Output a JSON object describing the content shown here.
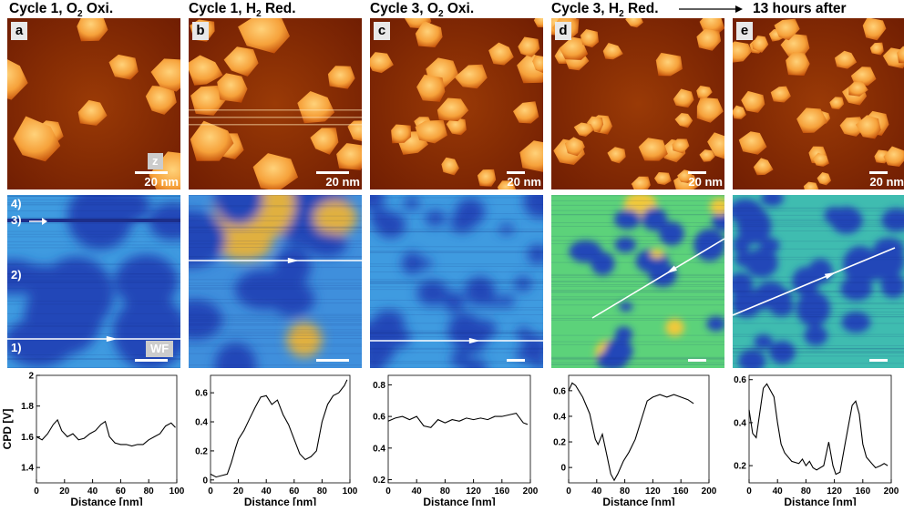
{
  "titles": {
    "a": "Cycle 1, O",
    "a_sub": "2",
    "a_tail": " Oxi.",
    "b": "Cycle 1, H",
    "b_sub": "2",
    "b_tail": " Red.",
    "c": "Cycle 3, O",
    "c_sub": "2",
    "c_tail": " Oxi.",
    "d": "Cycle 3, H",
    "d_sub": "2",
    "d_tail": " Red.",
    "e": "13 hours after"
  },
  "panel_letters": [
    "a",
    "b",
    "c",
    "d",
    "e"
  ],
  "scale_label": "20 nm",
  "topo_tag": "z",
  "kpfm_tag": "WF",
  "row_labels": [
    "4)",
    "3)",
    "2)",
    "1)"
  ],
  "colors": {
    "topo_dark": "#6b1a02",
    "topo_mid": "#c24d08",
    "topo_light": "#ffd27a",
    "kpfm_low": "#2146b8",
    "kpfm_mid": "#3fb8c8",
    "kpfm_high": "#f0c93a"
  },
  "chart_data": [
    {
      "type": "line",
      "panel": "a",
      "xlabel": "Distance [nm]",
      "ylabel": "CPD [V]",
      "xlim": [
        0,
        100
      ],
      "ylim": [
        1.3,
        2.0
      ],
      "xticks": [
        "0",
        "20",
        "40",
        "60",
        "80",
        "100"
      ],
      "yticks": [
        "1.4",
        "1.6",
        "1.8",
        "2"
      ],
      "x": [
        0,
        4,
        8,
        12,
        15,
        18,
        22,
        26,
        30,
        34,
        38,
        42,
        46,
        49,
        52,
        56,
        60,
        64,
        68,
        72,
        76,
        80,
        84,
        88,
        92,
        96,
        99
      ],
      "y": [
        1.6,
        1.58,
        1.62,
        1.68,
        1.71,
        1.64,
        1.6,
        1.62,
        1.58,
        1.59,
        1.62,
        1.64,
        1.68,
        1.7,
        1.6,
        1.56,
        1.55,
        1.55,
        1.54,
        1.55,
        1.55,
        1.58,
        1.6,
        1.62,
        1.67,
        1.69,
        1.66
      ]
    },
    {
      "type": "line",
      "panel": "b",
      "xlabel": "Distance [nm]",
      "xlim": [
        0,
        100
      ],
      "ylim": [
        -0.02,
        0.72
      ],
      "xticks": [
        "0",
        "20",
        "40",
        "60",
        "80",
        "100"
      ],
      "yticks": [
        "0",
        "0.2",
        "0.4",
        "0.6"
      ],
      "x": [
        0,
        4,
        8,
        12,
        15,
        18,
        20,
        24,
        28,
        32,
        36,
        40,
        44,
        48,
        52,
        56,
        60,
        64,
        68,
        72,
        76,
        80,
        84,
        88,
        92,
        96,
        98
      ],
      "y": [
        0.04,
        0.02,
        0.03,
        0.04,
        0.12,
        0.22,
        0.28,
        0.34,
        0.42,
        0.5,
        0.57,
        0.58,
        0.52,
        0.55,
        0.45,
        0.38,
        0.28,
        0.18,
        0.14,
        0.16,
        0.2,
        0.4,
        0.52,
        0.58,
        0.6,
        0.65,
        0.69
      ]
    },
    {
      "type": "line",
      "panel": "c",
      "xlabel": "Distance [nm]",
      "xlim": [
        0,
        200
      ],
      "ylim": [
        0.18,
        0.86
      ],
      "xticks": [
        "0",
        "40",
        "80",
        "120",
        "160",
        "200"
      ],
      "yticks": [
        "0.2",
        "0.4",
        "0.6",
        "0.8"
      ],
      "x": [
        0,
        10,
        20,
        30,
        40,
        50,
        60,
        70,
        80,
        90,
        100,
        110,
        120,
        130,
        140,
        150,
        160,
        170,
        180,
        190,
        196
      ],
      "y": [
        0.57,
        0.59,
        0.6,
        0.58,
        0.6,
        0.54,
        0.53,
        0.58,
        0.56,
        0.58,
        0.57,
        0.59,
        0.58,
        0.59,
        0.58,
        0.6,
        0.6,
        0.61,
        0.62,
        0.56,
        0.55
      ]
    },
    {
      "type": "line",
      "panel": "d",
      "xlabel": "Distance [nm]",
      "xlim": [
        0,
        200
      ],
      "ylim": [
        -0.12,
        0.72
      ],
      "xticks": [
        "0",
        "40",
        "80",
        "120",
        "160",
        "200"
      ],
      "yticks": [
        "0",
        "0.2",
        "0.4",
        "0.6"
      ],
      "x": [
        0,
        5,
        10,
        20,
        30,
        38,
        42,
        48,
        55,
        60,
        65,
        70,
        78,
        86,
        95,
        105,
        112,
        120,
        130,
        140,
        150,
        160,
        170,
        178
      ],
      "y": [
        0.6,
        0.66,
        0.64,
        0.55,
        0.42,
        0.22,
        0.18,
        0.26,
        0.08,
        -0.05,
        -0.1,
        -0.05,
        0.05,
        0.12,
        0.22,
        0.4,
        0.52,
        0.55,
        0.57,
        0.55,
        0.57,
        0.55,
        0.53,
        0.5
      ]
    },
    {
      "type": "line",
      "panel": "e",
      "xlabel": "Distance [nm]",
      "xlim": [
        0,
        200
      ],
      "ylim": [
        0.12,
        0.62
      ],
      "xticks": [
        "0",
        "40",
        "80",
        "120",
        "160",
        "200"
      ],
      "yticks": [
        "0.2",
        "0.4",
        "0.6"
      ],
      "x": [
        0,
        5,
        10,
        20,
        25,
        35,
        40,
        45,
        50,
        55,
        60,
        70,
        75,
        80,
        85,
        90,
        95,
        105,
        112,
        118,
        122,
        128,
        135,
        145,
        150,
        155,
        160,
        165,
        170,
        178,
        185,
        190,
        195
      ],
      "y": [
        0.46,
        0.35,
        0.33,
        0.56,
        0.58,
        0.52,
        0.4,
        0.3,
        0.26,
        0.24,
        0.22,
        0.21,
        0.23,
        0.2,
        0.22,
        0.19,
        0.18,
        0.2,
        0.31,
        0.2,
        0.16,
        0.17,
        0.3,
        0.48,
        0.5,
        0.44,
        0.3,
        0.24,
        0.22,
        0.19,
        0.2,
        0.21,
        0.2
      ]
    }
  ]
}
